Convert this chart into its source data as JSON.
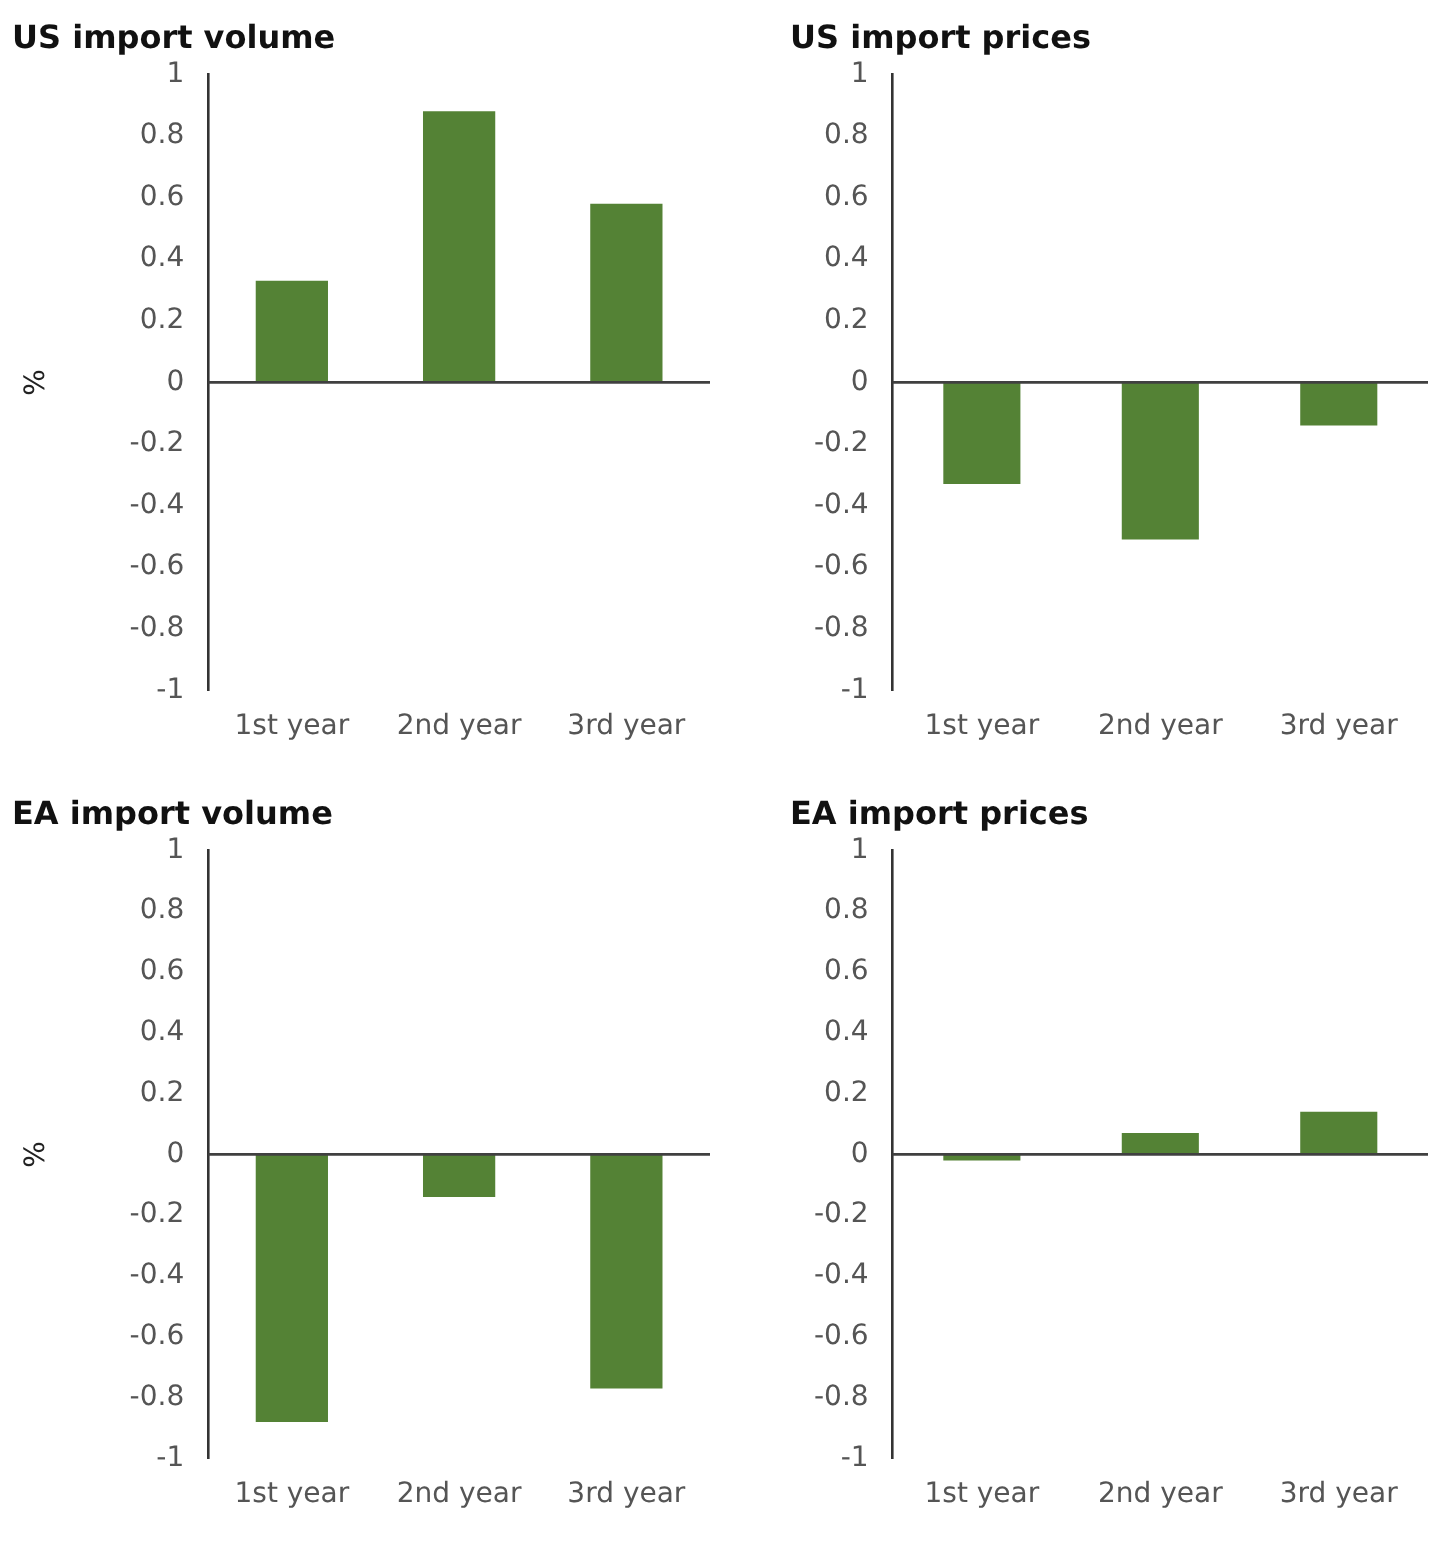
{
  "chart_data": [
    {
      "type": "bar",
      "title": "US import volume",
      "ylabel": "%",
      "categories": [
        "1st year",
        "2nd year",
        "3rd year"
      ],
      "values": [
        0.33,
        0.88,
        0.58
      ],
      "color": "#548235",
      "ylim": [
        -1,
        1
      ],
      "yticks": [
        -1,
        -0.8,
        -0.6,
        -0.4,
        -0.2,
        0,
        0.2,
        0.4,
        0.6,
        0.8,
        1
      ],
      "ref_lines": [
        {
          "axis": "y",
          "value": 0
        }
      ],
      "grid": false,
      "legend": false
    },
    {
      "type": "bar",
      "title": "US import prices",
      "categories": [
        "1st year",
        "2nd year",
        "3rd year"
      ],
      "values": [
        -0.33,
        -0.51,
        -0.14
      ],
      "color": "#548235",
      "ylim": [
        -1,
        1
      ],
      "yticks": [
        -1,
        -0.8,
        -0.6,
        -0.4,
        -0.2,
        0,
        0.2,
        0.4,
        0.6,
        0.8,
        1
      ],
      "ref_lines": [
        {
          "axis": "y",
          "value": 0
        }
      ],
      "grid": false,
      "legend": false
    },
    {
      "type": "bar",
      "title": "EA import volume",
      "ylabel": "%",
      "categories": [
        "1st year",
        "2nd year",
        "3rd year"
      ],
      "values": [
        -0.88,
        -0.14,
        -0.77
      ],
      "color": "#548235",
      "ylim": [
        -1,
        1
      ],
      "yticks": [
        -1,
        -0.8,
        -0.6,
        -0.4,
        -0.2,
        0,
        0.2,
        0.4,
        0.6,
        0.8,
        1
      ],
      "ref_lines": [
        {
          "axis": "y",
          "value": 0
        }
      ],
      "grid": false,
      "legend": false
    },
    {
      "type": "bar",
      "title": "EA import prices",
      "categories": [
        "1st year",
        "2nd year",
        "3rd year"
      ],
      "values": [
        -0.02,
        0.07,
        0.14
      ],
      "color": "#548235",
      "ylim": [
        -1,
        1
      ],
      "yticks": [
        -1,
        -0.8,
        -0.6,
        -0.4,
        -0.2,
        0,
        0.2,
        0.4,
        0.6,
        0.8,
        1
      ],
      "ref_lines": [
        {
          "axis": "y",
          "value": 0
        }
      ],
      "grid": false,
      "legend": false
    }
  ]
}
